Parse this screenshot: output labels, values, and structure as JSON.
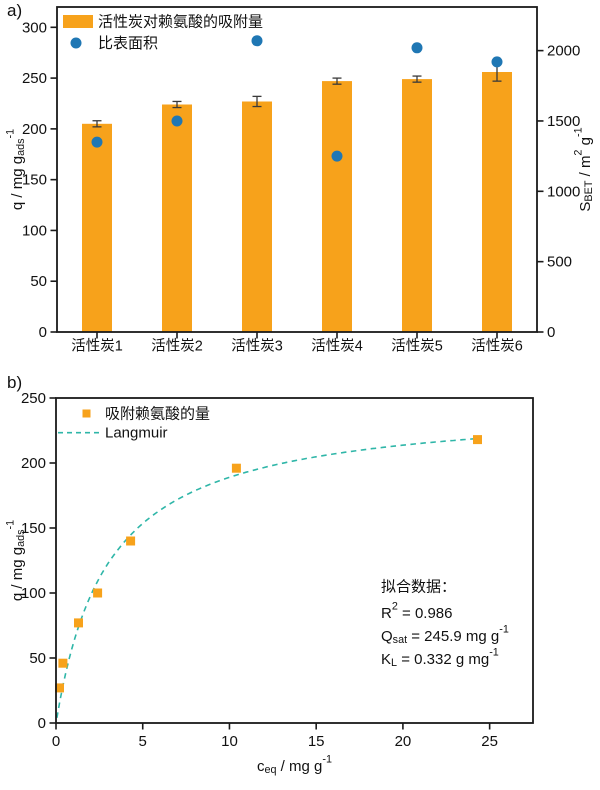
{
  "colors": {
    "bar_orange": "#F7A21B",
    "dot_blue": "#1F77B4",
    "fit_teal": "#2FB6A8",
    "axis": "#1a1a1a"
  },
  "chart_data": [
    {
      "id": "a",
      "type": "bar",
      "panel_label": "a)",
      "categories": [
        "活性炭1",
        "活性炭2",
        "活性炭3",
        "活性炭4",
        "活性炭5",
        "活性炭6"
      ],
      "series": [
        {
          "name": "活性炭对赖氨酸的吸附量",
          "kind": "bar",
          "axis": "left",
          "values": [
            205,
            224,
            227,
            247,
            249,
            256
          ],
          "errors": [
            3,
            3,
            5,
            3,
            3,
            9
          ],
          "color": "#F7A21B"
        },
        {
          "name": "比表面积",
          "kind": "scatter",
          "axis": "right",
          "values": [
            1350,
            1500,
            2070,
            1250,
            2020,
            1920
          ],
          "color": "#1F77B4"
        }
      ],
      "left_axis": {
        "ticks": [
          0,
          50,
          100,
          150,
          200,
          250,
          300
        ],
        "range": [
          0,
          320
        ],
        "label_segments": [
          [
            "t",
            "q / mg g"
          ],
          [
            "sub",
            "ads"
          ],
          [
            "sup",
            "-1"
          ]
        ]
      },
      "right_axis": {
        "ticks": [
          0,
          500,
          1000,
          1500,
          2000
        ],
        "range": [
          0,
          2310
        ],
        "label_segments": [
          [
            "t",
            "S"
          ],
          [
            "sub",
            "BET"
          ],
          [
            "t",
            " / m"
          ],
          [
            "sup",
            "2"
          ],
          [
            "t",
            " g"
          ],
          [
            "sup",
            "-1"
          ]
        ]
      }
    },
    {
      "id": "b",
      "type": "scatter",
      "panel_label": "b)",
      "series": [
        {
          "name": "吸附赖氨酸的量",
          "kind": "scatter",
          "marker": "square",
          "color": "#F7A21B",
          "points": [
            [
              0.2,
              27
            ],
            [
              0.4,
              46
            ],
            [
              1.3,
              77
            ],
            [
              2.4,
              100
            ],
            [
              4.3,
              140
            ],
            [
              10.4,
              196
            ],
            [
              24.3,
              218
            ]
          ]
        },
        {
          "name": "Langmuir",
          "kind": "line",
          "style": "dashed",
          "color": "#2FB6A8",
          "fit": {
            "model": "langmuir",
            "q_sat": 245.9,
            "k_l": 0.332,
            "c_range": [
              0.05,
              24.3
            ]
          }
        }
      ],
      "x_axis": {
        "ticks": [
          0,
          5,
          10,
          15,
          20,
          25
        ],
        "range": [
          0,
          27.5
        ],
        "label_segments": [
          [
            "t",
            "c"
          ],
          [
            "sub",
            "eq"
          ],
          [
            "t",
            " / mg g"
          ],
          [
            "sup",
            "-1"
          ]
        ]
      },
      "y_axis": {
        "ticks": [
          0,
          50,
          100,
          150,
          200,
          250
        ],
        "range": [
          0,
          250
        ],
        "label_segments": [
          [
            "t",
            "q / mg g"
          ],
          [
            "sub",
            "ads"
          ],
          [
            "sup",
            "-1"
          ]
        ]
      },
      "annotation": {
        "title": "拟合数据：",
        "lines_segments": [
          [
            [
              "t",
              "R"
            ],
            [
              "sup",
              "2"
            ],
            [
              "t",
              " = 0.986"
            ]
          ],
          [
            [
              "t",
              "Q"
            ],
            [
              "sub",
              "sat"
            ],
            [
              "t",
              " = 245.9 mg g"
            ],
            [
              "sup",
              "-1"
            ]
          ],
          [
            [
              "t",
              "K"
            ],
            [
              "sub",
              "L"
            ],
            [
              "t",
              " = 0.332 g mg"
            ],
            [
              "sup",
              "-1"
            ]
          ]
        ]
      }
    }
  ]
}
